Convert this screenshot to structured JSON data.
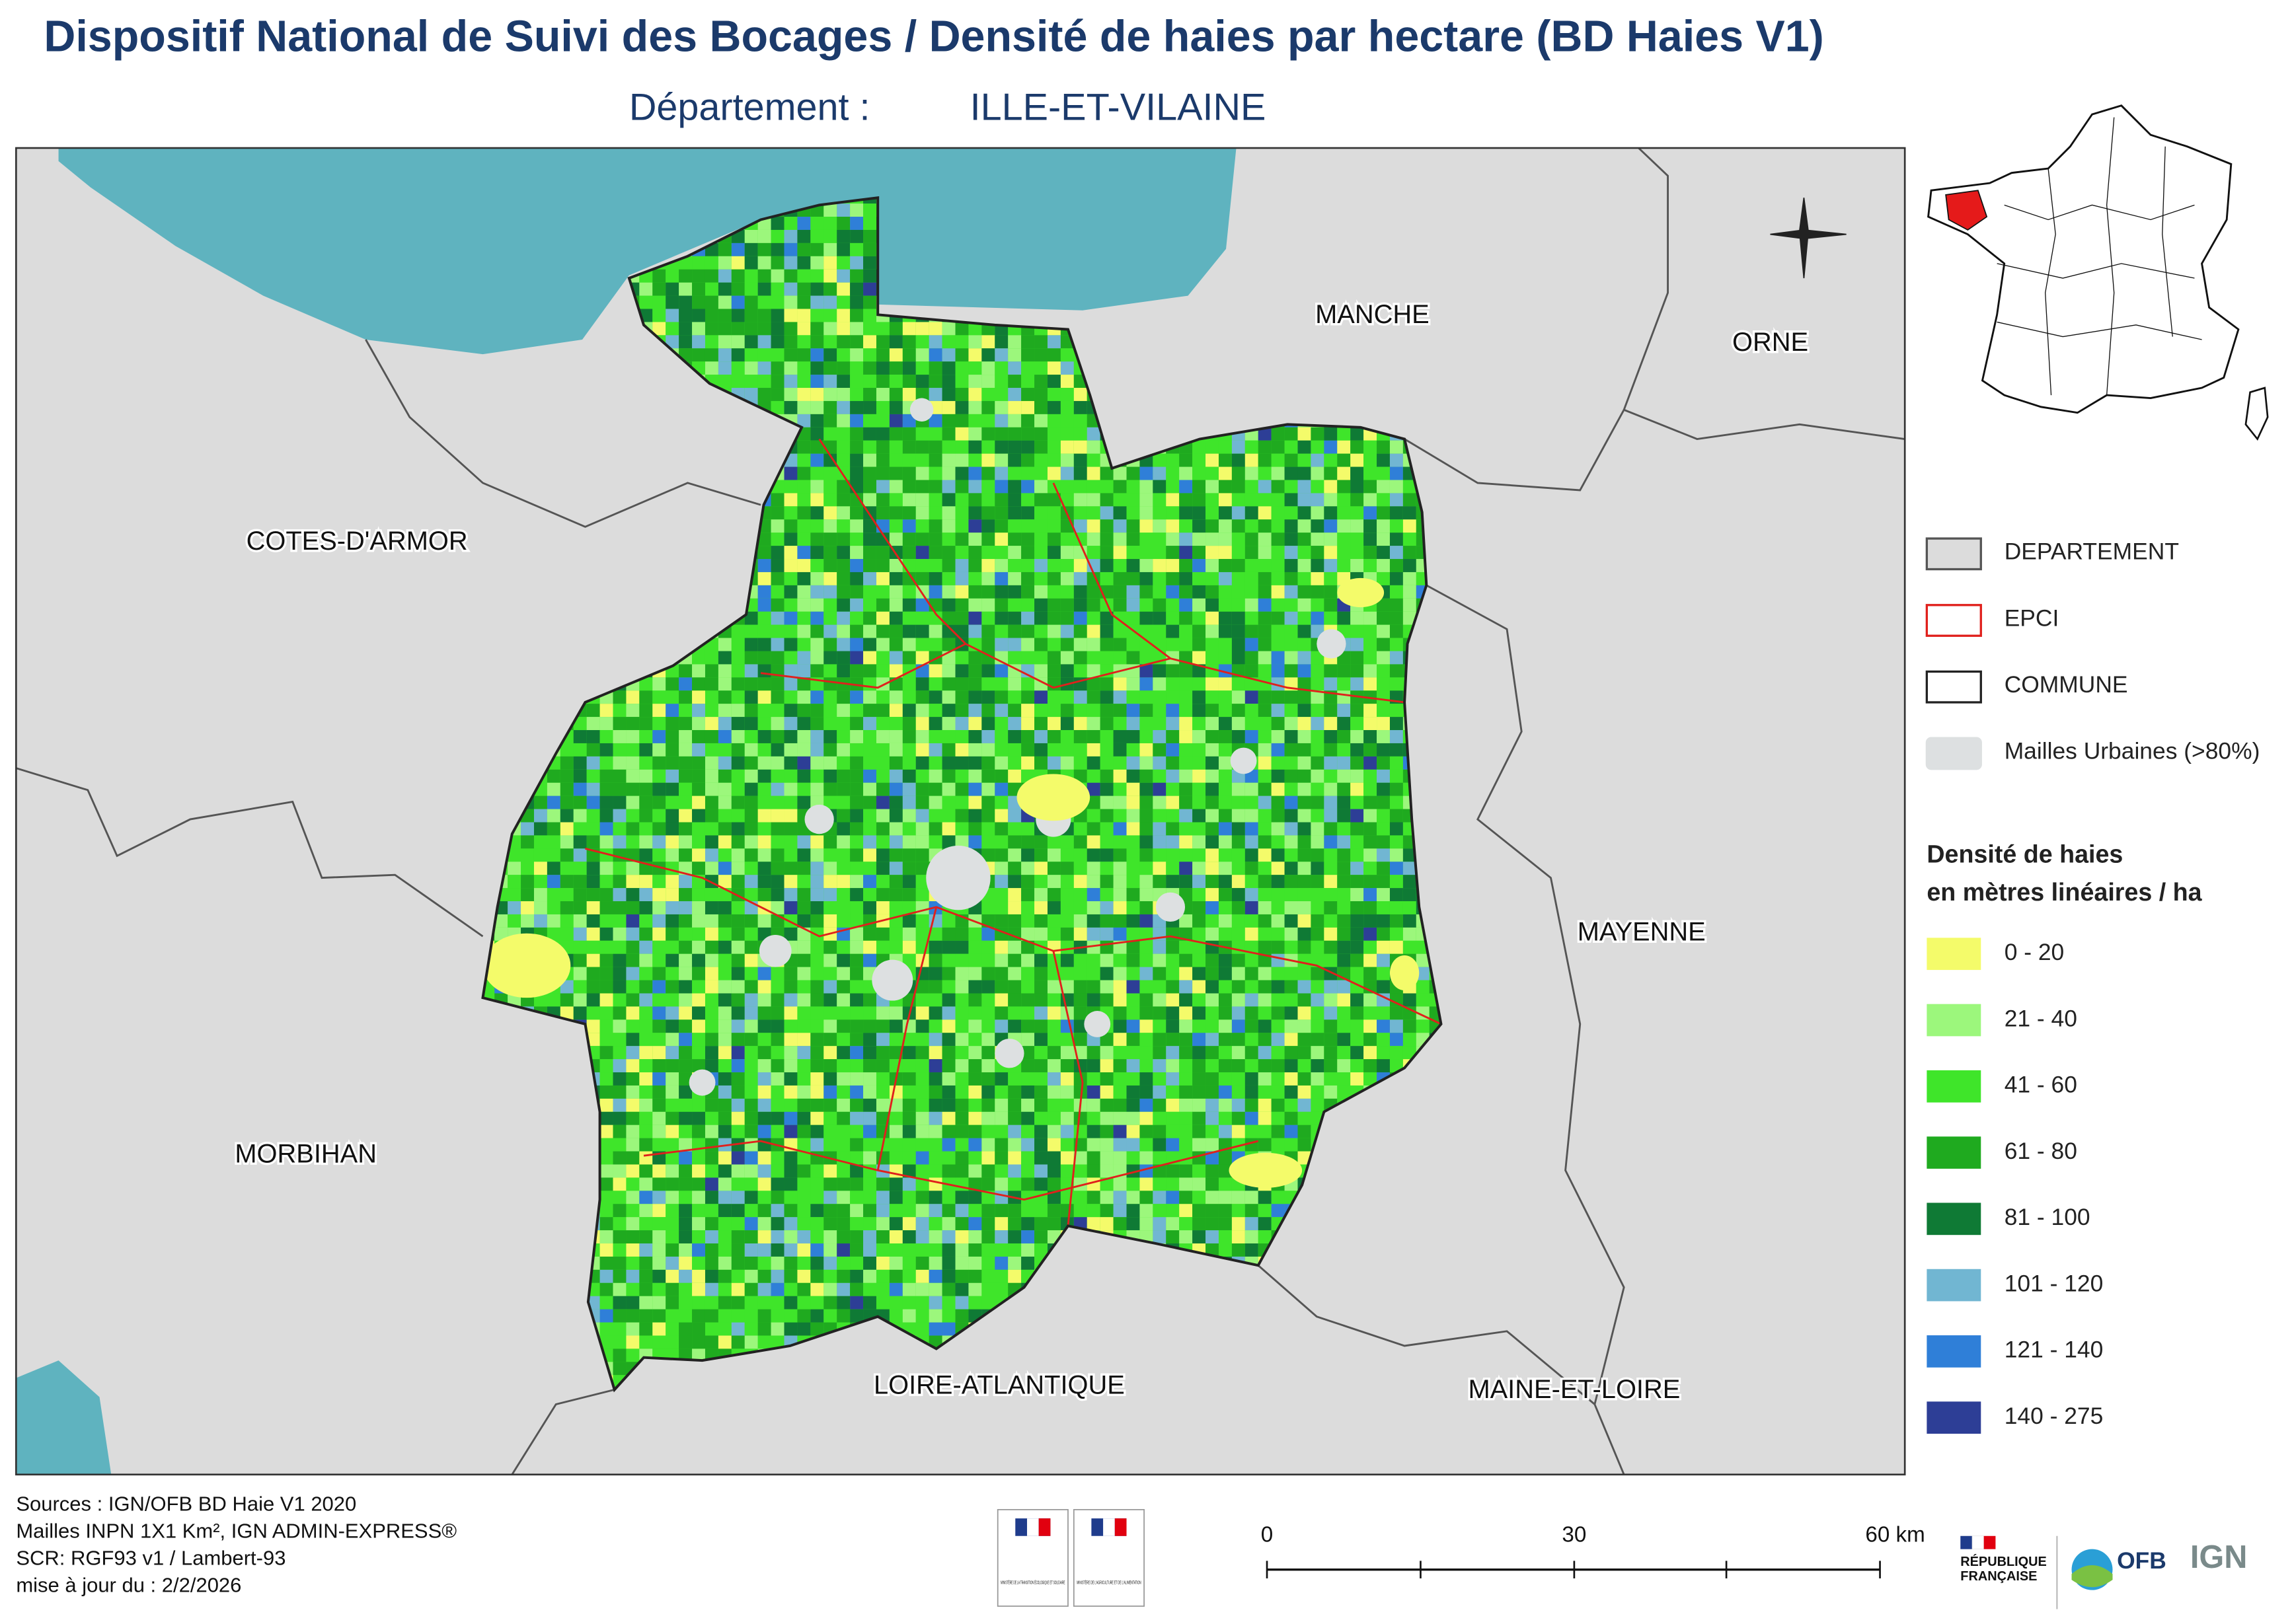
{
  "header": {
    "title": "Dispositif National de Suivi des Bocages / Densité de haies par hectare (BD Haies V1)",
    "subtitle_prefix": "Département :",
    "subtitle_department": "ILLE-ET-VILAINE"
  },
  "map": {
    "labels": [
      "MANCHE",
      "ORNE",
      "COTES-D'ARMOR",
      "MAYENNE",
      "MORBIHAN",
      "LOIRE-ATLANTIQUE",
      "MAINE-ET-LOIRE"
    ]
  },
  "legend": {
    "layers": [
      {
        "label": "DEPARTEMENT",
        "fill": "#dcdcdc",
        "stroke": "#555555"
      },
      {
        "label": "EPCI",
        "fill": "#ffffff",
        "stroke": "#e0201c"
      },
      {
        "label": "COMMUNE",
        "fill": "#ffffff",
        "stroke": "#222222"
      },
      {
        "label": "Mailles Urbaines (>80%)",
        "fill": "#dde0e1",
        "stroke": "#dde0e1"
      }
    ],
    "density_title": [
      "Densité de haies",
      "en mètres linéaires / ha"
    ],
    "classes": [
      {
        "label": "0 - 20",
        "color": "#f4fb6a"
      },
      {
        "label": "21 - 40",
        "color": "#9cf77c"
      },
      {
        "label": "41 - 60",
        "color": "#3fe52a"
      },
      {
        "label": "61 - 80",
        "color": "#1faa1f"
      },
      {
        "label": "81 - 100",
        "color": "#0f7a35"
      },
      {
        "label": "101 - 120",
        "color": "#71b6d2"
      },
      {
        "label": "121 - 140",
        "color": "#2f7fd8"
      },
      {
        "label": "140 - 275",
        "color": "#2d3e96"
      }
    ]
  },
  "footer": {
    "sources": [
      "Sources : IGN/OFB BD Haie V1 2020",
      "Mailles INPN 1X1 Km²,  IGN ADMIN-EXPRESS®",
      "SCR: RGF93 v1 / Lambert-93",
      "mise à jour du  : 2/2/2026"
    ],
    "scale": [
      "0",
      "30",
      "60 km"
    ],
    "ministries": [
      "MINISTÈRE DE LA TRANSITION ÉCOLOGIQUE ET SOLIDAIRE",
      "MINISTÈRE DE L'AGRICULTURE ET DE L'ALIMENTATION"
    ],
    "republique": [
      "RÉPUBLIQUE",
      "FRANÇAISE"
    ],
    "ofb": "OFB",
    "ign": "IGN"
  }
}
